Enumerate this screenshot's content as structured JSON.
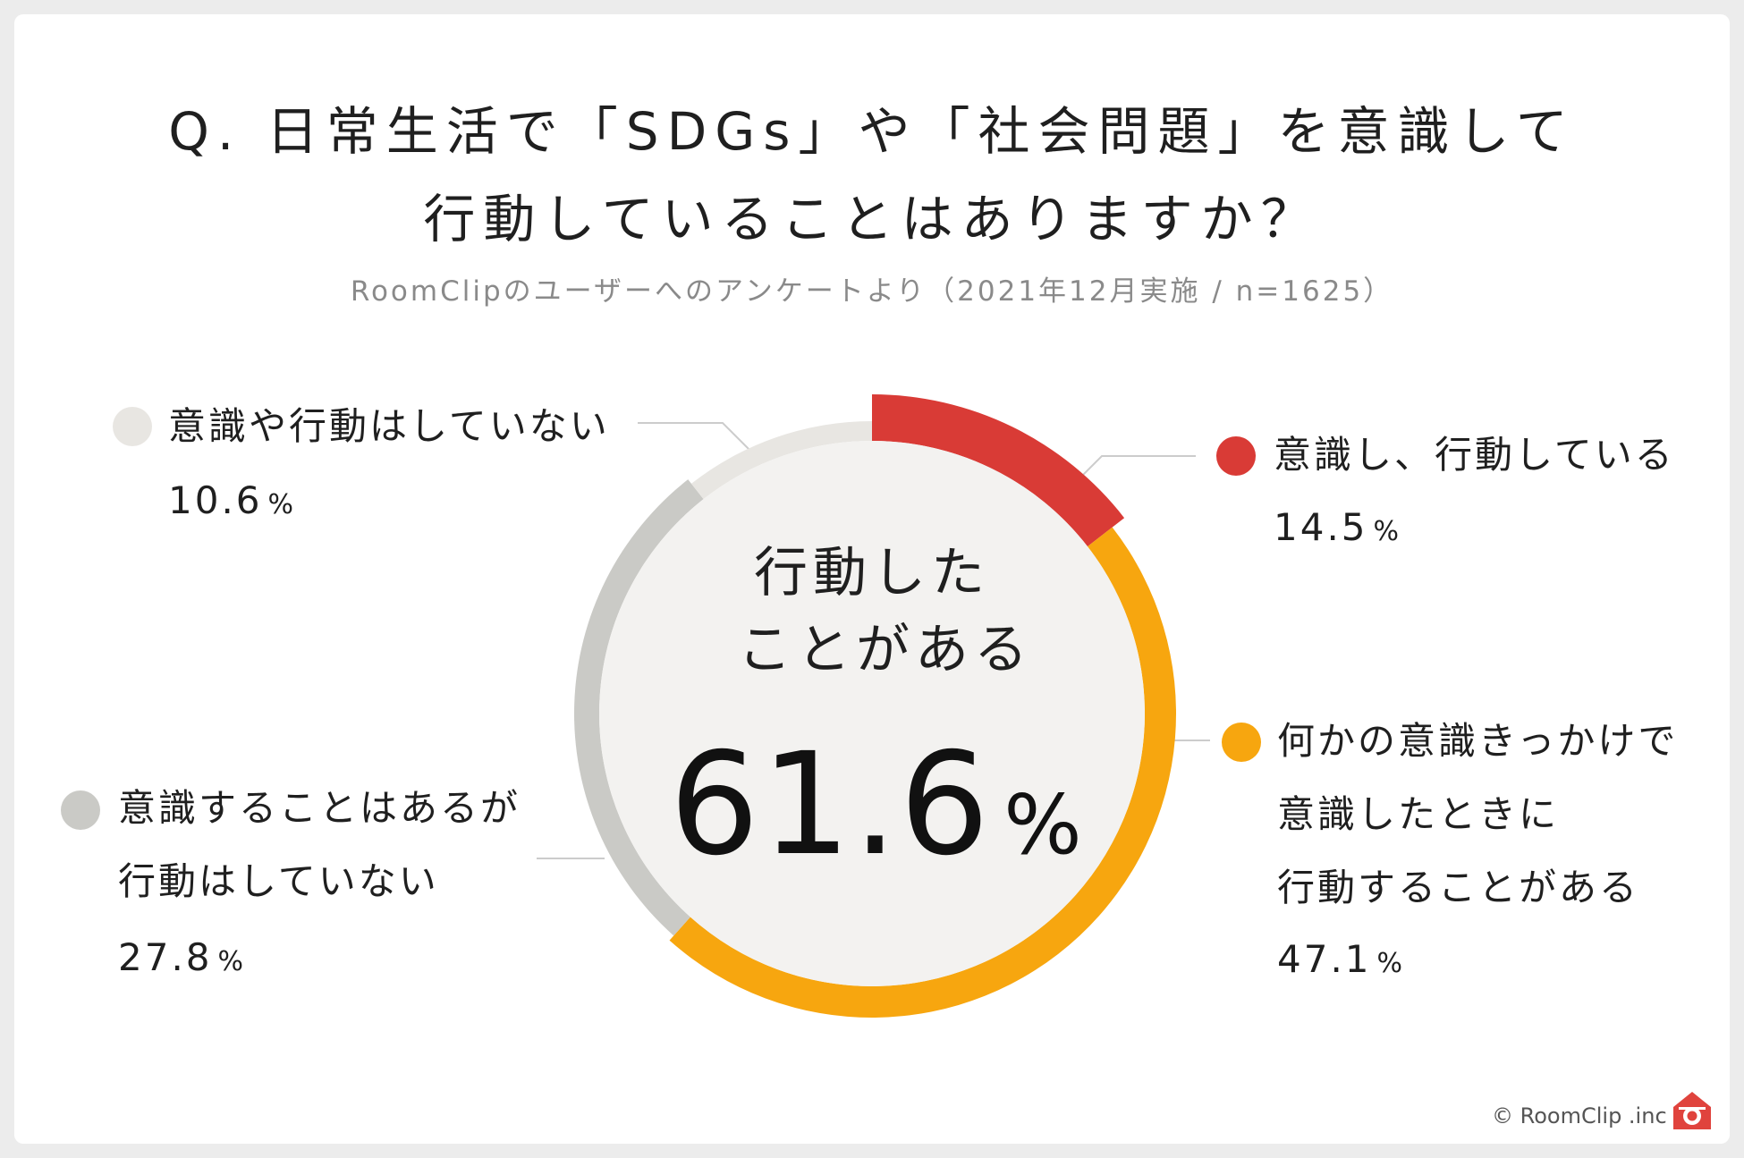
{
  "title_line1": "Q. 日常生活で「SDGs」や「社会問題」を意識して",
  "title_line2": "行動していることはありますか？",
  "subtitle": "RoomClipのユーザーへのアンケートより（2021年12月実施 / n=1625）",
  "center": {
    "label_line1": "行動した",
    "label_line2": "ことがある",
    "value": "61.6",
    "pct": "%"
  },
  "legend": {
    "s1": {
      "line1": "意識し、行動している",
      "value": "14.5",
      "pct": "%"
    },
    "s2": {
      "line1": "何かの意識きっかけで",
      "line2": "意識したときに",
      "line3": "行動することがある",
      "value": "47.1",
      "pct": "%"
    },
    "s3": {
      "line1": "意識することはあるが",
      "line2": "行動はしていない",
      "value": "27.8",
      "pct": "%"
    },
    "s4": {
      "line1": "意識や行動はしていない",
      "value": "10.6",
      "pct": "%"
    }
  },
  "credit": "© RoomClip .inc",
  "colors": {
    "s1": "#d93b36",
    "s2": "#f7a60f",
    "s3": "#cacac6",
    "s4": "#e8e6e2",
    "center_fill": "#f3f2f0",
    "leader": "#cccccc",
    "brand_icon": "#e0433d"
  },
  "chart_data": {
    "type": "pie",
    "style": "donut",
    "categories": [
      "意識し、行動している",
      "何かの意識きっかけで意識したときに行動することがある",
      "意識することはあるが行動はしていない",
      "意識や行動はしていない"
    ],
    "values": [
      14.5,
      47.1,
      27.8,
      10.6
    ],
    "unit": "%",
    "center_total": 61.6,
    "title": "Q. 日常生活で「SDGs」や「社会問題」を意識して行動していることはありますか？"
  }
}
